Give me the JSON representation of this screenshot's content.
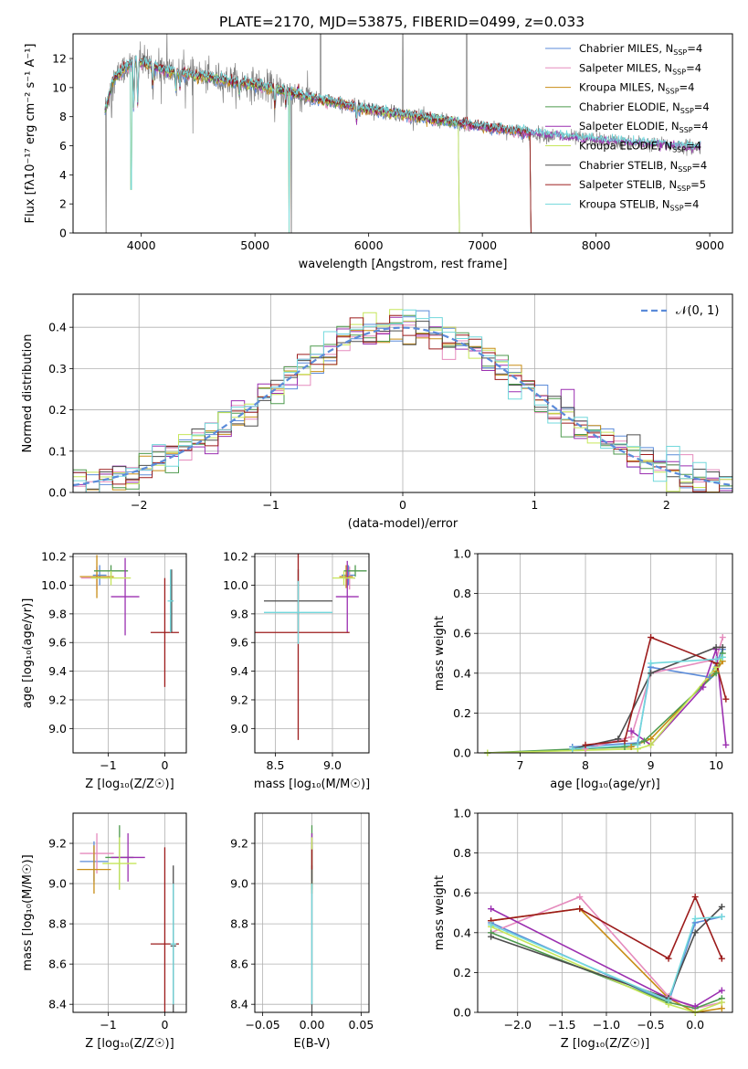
{
  "figure": {
    "title": "PLATE=2170, MJD=53875, FIBERID=0499, z=0.033"
  },
  "colors": {
    "series": [
      "#5b8bd9",
      "#e58bbd",
      "#c88d16",
      "#4e9a4e",
      "#9b2fb0",
      "#c6e65a",
      "#4d4d4d",
      "#9c1b1b",
      "#72d8dc"
    ],
    "spectrum": "#808080",
    "normal_curve": "#5b8bd9",
    "grid": "#b0b0b0"
  },
  "chart_data": [
    {
      "id": "spectrum",
      "type": "line",
      "xlabel": "wavelength [Angstrom, rest frame]",
      "ylabel": "Flux [fλ10⁻¹⁷ erg cm⁻² s⁻¹ A⁻¹]",
      "xlim": [
        3400,
        9200
      ],
      "ylim": [
        0,
        13.7
      ],
      "xticks": [
        4000,
        5000,
        6000,
        7000,
        8000,
        9000
      ],
      "yticks": [
        0,
        2,
        4,
        6,
        8,
        10,
        12
      ],
      "grid": false,
      "legend_position": "top-right",
      "legend": [
        {
          "label": "Chabrier MILES, N",
          "sub": "SSP",
          "suffix": "=4"
        },
        {
          "label": "Salpeter MILES, N",
          "sub": "SSP",
          "suffix": "=4"
        },
        {
          "label": "Kroupa MILES, N",
          "sub": "SSP",
          "suffix": "=4"
        },
        {
          "label": "Chabrier ELODIE, N",
          "sub": "SSP",
          "suffix": "=4"
        },
        {
          "label": "Salpeter ELODIE, N",
          "sub": "SSP",
          "suffix": "=4"
        },
        {
          "label": "Kroupa ELODIE, N",
          "sub": "SSP",
          "suffix": "=4"
        },
        {
          "label": "Chabrier STELIB, N",
          "sub": "SSP",
          "suffix": "=4"
        },
        {
          "label": "Salpeter STELIB, N",
          "sub": "SSP",
          "suffix": "=5"
        },
        {
          "label": "Kroupa STELIB, N",
          "sub": "SSP",
          "suffix": "=4"
        }
      ],
      "continuum": [
        [
          3680,
          8.4
        ],
        [
          3750,
          10.5
        ],
        [
          3850,
          11.3
        ],
        [
          3950,
          11.8
        ],
        [
          4050,
          11.6
        ],
        [
          4200,
          11.2
        ],
        [
          4500,
          10.8
        ],
        [
          5000,
          10.2
        ],
        [
          5500,
          9.3
        ],
        [
          6000,
          8.5
        ],
        [
          6500,
          7.9
        ],
        [
          7000,
          7.3
        ],
        [
          7500,
          6.8
        ],
        [
          8000,
          6.4
        ],
        [
          8500,
          6.1
        ],
        [
          8920,
          5.9
        ]
      ],
      "data_range": [
        3680,
        8920
      ],
      "model_ranges": [
        [
          3680,
          7420
        ],
        [
          3680,
          7420
        ],
        [
          3680,
          7420
        ],
        [
          3680,
          6790
        ],
        [
          3680,
          8920
        ],
        [
          3680,
          6790
        ],
        [
          3680,
          7420
        ],
        [
          3680,
          7420
        ],
        [
          3680,
          8920
        ]
      ],
      "absorption": [
        [
          3934,
          3.5
        ],
        [
          3969,
          3.0
        ],
        [
          4102,
          1.5
        ],
        [
          4304,
          1.2
        ],
        [
          4341,
          1.0
        ],
        [
          4861,
          1.0
        ],
        [
          5175,
          1.3
        ],
        [
          5270,
          0.8
        ],
        [
          5893,
          1.0
        ]
      ],
      "spikes": [
        [
          5577,
          4.0
        ],
        [
          6300,
          2.5
        ],
        [
          6863,
          5.5
        ]
      ],
      "model_dips": [
        [
          3910,
          3.0
        ],
        [
          5300,
          0.0
        ]
      ]
    },
    {
      "id": "residuals",
      "type": "step",
      "xlabel": "(data-model)/error",
      "ylabel": "Normed distribution",
      "xlim": [
        -2.5,
        2.5
      ],
      "ylim": [
        0,
        0.48
      ],
      "xticks": [
        -2,
        -1,
        0,
        1,
        2
      ],
      "yticks": [
        0.0,
        0.1,
        0.2,
        0.3,
        0.4
      ],
      "grid": true,
      "bin_width": 0.1,
      "legend_position": "top-right",
      "normal_label": "𝒩(0, 1)"
    },
    {
      "id": "age-vs-Z",
      "type": "errorbar",
      "xlabel": "Z [log₁₀(Z/Z☉)]",
      "ylabel": "age  [log₁₀(age/yr)]",
      "xlim": [
        -1.62,
        0.38
      ],
      "ylim": [
        8.83,
        10.22
      ],
      "xticks": [
        -1,
        0
      ],
      "yticks": [
        9.0,
        9.2,
        9.4,
        9.6,
        9.8,
        10.0,
        10.2
      ],
      "grid": true,
      "points": [
        {
          "x": -1.15,
          "xerr": 0.12,
          "y": 10.07,
          "yerr": 0.07
        },
        {
          "x": -1.2,
          "xerr": 0.28,
          "y": 10.05,
          "yerr": 0.08
        },
        {
          "x": -1.2,
          "xerr": 0.3,
          "y": 10.06,
          "yerr": 0.15
        },
        {
          "x": -0.95,
          "xerr": 0.3,
          "y": 10.1,
          "yerr": 0.04
        },
        {
          "x": -0.7,
          "xerr": 0.25,
          "y": 9.92,
          "yerr": 0.27
        },
        {
          "x": -0.95,
          "xerr": 0.35,
          "y": 10.05,
          "yerr": 0.05
        },
        {
          "x": 0.12,
          "xerr": 0.03,
          "y": 9.89,
          "yerr": 0.22
        },
        {
          "x": 0.0,
          "xerr": 0.25,
          "y": 9.67,
          "yerr": 0.38
        },
        {
          "x": 0.1,
          "xerr": 0.05,
          "y": 9.89,
          "yerr": 0.22
        }
      ]
    },
    {
      "id": "age-vs-mass",
      "type": "errorbar",
      "xlabel": "mass [log₁₀(M/M☉)]",
      "ylabel": "",
      "xlim": [
        8.32,
        9.32
      ],
      "ylim": [
        8.83,
        10.22
      ],
      "xticks": [
        8.5,
        9.0
      ],
      "yticks": [
        9.0,
        9.2,
        9.4,
        9.6,
        9.8,
        10.0,
        10.2
      ],
      "grid": true,
      "points": [
        {
          "x": 9.14,
          "xerr": 0.06,
          "y": 10.07,
          "yerr": 0.07
        },
        {
          "x": 9.15,
          "xerr": 0.05,
          "y": 10.05,
          "yerr": 0.08
        },
        {
          "x": 9.12,
          "xerr": 0.06,
          "y": 10.06,
          "yerr": 0.08
        },
        {
          "x": 9.2,
          "xerr": 0.1,
          "y": 10.1,
          "yerr": 0.04
        },
        {
          "x": 9.13,
          "xerr": 0.1,
          "y": 9.92,
          "yerr": 0.25
        },
        {
          "x": 9.1,
          "xerr": 0.1,
          "y": 10.05,
          "yerr": 0.05
        },
        {
          "x": 8.7,
          "xerr": 0.3,
          "y": 9.89,
          "yerr": 0.22
        },
        {
          "x": 8.7,
          "xerr": 0.45,
          "y": 9.67,
          "yerr": 0.75
        },
        {
          "x": 8.7,
          "xerr": 0.3,
          "y": 9.81,
          "yerr": 0.22
        }
      ]
    },
    {
      "id": "weight-vs-age",
      "type": "line",
      "xlabel": "age  [log₁₀(age/yr)]",
      "ylabel": "mass weight",
      "xlim": [
        6.35,
        10.25
      ],
      "ylim": [
        0,
        1.0
      ],
      "xticks": [
        7,
        8,
        9,
        10
      ],
      "yticks": [
        0.0,
        0.2,
        0.4,
        0.6,
        0.8,
        1.0
      ],
      "grid": true,
      "series": [
        {
          "x": [
            7.8,
            8.8,
            9.0,
            9.9,
            10.1
          ],
          "y": [
            0.03,
            0.05,
            0.43,
            0.38,
            0.52
          ]
        },
        {
          "x": [
            8.0,
            8.7,
            9.0,
            10.0,
            10.1
          ],
          "y": [
            0.02,
            0.08,
            0.4,
            0.47,
            0.58
          ]
        },
        {
          "x": [
            7.8,
            8.7,
            9.0,
            10.0,
            10.1
          ],
          "y": [
            0.02,
            0.03,
            0.07,
            0.41,
            0.46
          ]
        },
        {
          "x": [
            6.5,
            8.6,
            8.9,
            10.0,
            10.1
          ],
          "y": [
            0.0,
            0.03,
            0.06,
            0.4,
            0.5
          ]
        },
        {
          "x": [
            8.7,
            9.0,
            9.8,
            10.0,
            10.15
          ],
          "y": [
            0.11,
            0.04,
            0.33,
            0.52,
            0.04
          ]
        },
        {
          "x": [
            6.5,
            8.8,
            9.0,
            10.0,
            10.1
          ],
          "y": [
            0.0,
            0.02,
            0.04,
            0.43,
            0.48
          ]
        },
        {
          "x": [
            7.8,
            8.5,
            9.0,
            10.0,
            10.1
          ],
          "y": [
            0.02,
            0.07,
            0.4,
            0.53,
            0.53
          ]
        },
        {
          "x": [
            8.0,
            8.6,
            9.0,
            10.0,
            10.15
          ],
          "y": [
            0.04,
            0.06,
            0.58,
            0.45,
            0.27
          ]
        },
        {
          "x": [
            7.8,
            8.8,
            9.0,
            10.0,
            10.1
          ],
          "y": [
            0.02,
            0.04,
            0.45,
            0.47,
            0.48
          ]
        }
      ]
    },
    {
      "id": "mass-vs-Z",
      "type": "errorbar",
      "xlabel": "Z [log₁₀(Z/Z☉)]",
      "ylabel": "mass [log₁₀(M/M☉)]",
      "xlim": [
        -1.62,
        0.38
      ],
      "ylim": [
        8.36,
        9.35
      ],
      "xticks": [
        -1,
        0
      ],
      "yticks": [
        8.4,
        8.6,
        8.8,
        9.0,
        9.2
      ],
      "grid": true,
      "points": [
        {
          "x": -1.25,
          "xerr": 0.25,
          "y": 9.11,
          "yerr": 0.1
        },
        {
          "x": -1.2,
          "xerr": 0.3,
          "y": 9.15,
          "yerr": 0.1
        },
        {
          "x": -1.25,
          "xerr": 0.3,
          "y": 9.07,
          "yerr": 0.12
        },
        {
          "x": -0.8,
          "xerr": 0.25,
          "y": 9.13,
          "yerr": 0.16
        },
        {
          "x": -0.65,
          "xerr": 0.3,
          "y": 9.13,
          "yerr": 0.12
        },
        {
          "x": -0.8,
          "xerr": 0.3,
          "y": 9.1,
          "yerr": 0.13
        },
        {
          "x": 0.15,
          "xerr": 0.05,
          "y": 8.69,
          "yerr": 0.4
        },
        {
          "x": 0.0,
          "xerr": 0.25,
          "y": 8.7,
          "yerr": 0.48
        },
        {
          "x": 0.15,
          "xerr": 0.05,
          "y": 8.7,
          "yerr": 0.3
        }
      ]
    },
    {
      "id": "mass-vs-EBV",
      "type": "errorbar",
      "xlabel": "E(B-V)",
      "ylabel": "",
      "xlim": [
        -0.058,
        0.058
      ],
      "ylim": [
        8.36,
        9.35
      ],
      "xticks": [
        -0.05,
        0.0,
        0.05
      ],
      "yticks": [
        8.4,
        8.6,
        8.8,
        9.0,
        9.2
      ],
      "grid": true,
      "points": [
        {
          "x": 0.0,
          "xerr": 0.0,
          "y": 9.11,
          "yerr": 0.1
        },
        {
          "x": 0.0,
          "xerr": 0.0,
          "y": 9.15,
          "yerr": 0.1
        },
        {
          "x": 0.0,
          "xerr": 0.0,
          "y": 9.07,
          "yerr": 0.12
        },
        {
          "x": 0.0,
          "xerr": 0.0,
          "y": 9.13,
          "yerr": 0.16
        },
        {
          "x": 0.0,
          "xerr": 0.0,
          "y": 9.13,
          "yerr": 0.12
        },
        {
          "x": 0.0,
          "xerr": 0.0,
          "y": 9.1,
          "yerr": 0.13
        },
        {
          "x": 0.0,
          "xerr": 0.0,
          "y": 8.69,
          "yerr": 0.4
        },
        {
          "x": 0.0,
          "xerr": 0.0,
          "y": 9.12,
          "yerr": 0.05
        },
        {
          "x": 0.0,
          "xerr": 0.0,
          "y": 8.7,
          "yerr": 0.3
        }
      ]
    },
    {
      "id": "weight-vs-Z",
      "type": "line",
      "xlabel": "Z [log₁₀(Z/Z☉)]",
      "ylabel": "mass weight",
      "xlim": [
        -2.45,
        0.42
      ],
      "ylim": [
        0,
        1.0
      ],
      "xticks": [
        -2.0,
        -1.5,
        -1.0,
        -0.5,
        0.0
      ],
      "yticks": [
        0.0,
        0.2,
        0.4,
        0.6,
        0.8,
        1.0
      ],
      "grid": true,
      "series": [
        {
          "x": [
            -2.3,
            -0.3,
            0.0,
            0.3
          ],
          "y": [
            0.45,
            0.05,
            0.45,
            0.48
          ]
        },
        {
          "x": [
            -2.3,
            -1.3,
            -0.3,
            0.0,
            0.3
          ],
          "y": [
            0.4,
            0.58,
            0.08,
            0.02,
            0.05
          ]
        },
        {
          "x": [
            -2.3,
            -1.3,
            -0.3,
            0.0,
            0.3
          ],
          "y": [
            0.46,
            0.52,
            0.07,
            0.0,
            0.02
          ]
        },
        {
          "x": [
            -2.3,
            -0.3,
            0.0,
            0.3
          ],
          "y": [
            0.4,
            0.05,
            0.02,
            0.07
          ]
        },
        {
          "x": [
            -2.3,
            -0.3,
            0.0,
            0.3
          ],
          "y": [
            0.52,
            0.07,
            0.03,
            0.11
          ]
        },
        {
          "x": [
            -2.3,
            -0.3,
            0.0,
            0.3
          ],
          "y": [
            0.43,
            0.04,
            0.0,
            0.05
          ]
        },
        {
          "x": [
            -2.3,
            -0.3,
            0.0,
            0.3
          ],
          "y": [
            0.38,
            0.07,
            0.4,
            0.53
          ]
        },
        {
          "x": [
            -2.3,
            -1.3,
            -0.3,
            0.0,
            0.3
          ],
          "y": [
            0.46,
            0.52,
            0.27,
            0.58,
            0.27
          ]
        },
        {
          "x": [
            -2.3,
            -0.3,
            0.0,
            0.3
          ],
          "y": [
            0.44,
            0.06,
            0.47,
            0.48
          ]
        }
      ]
    }
  ]
}
